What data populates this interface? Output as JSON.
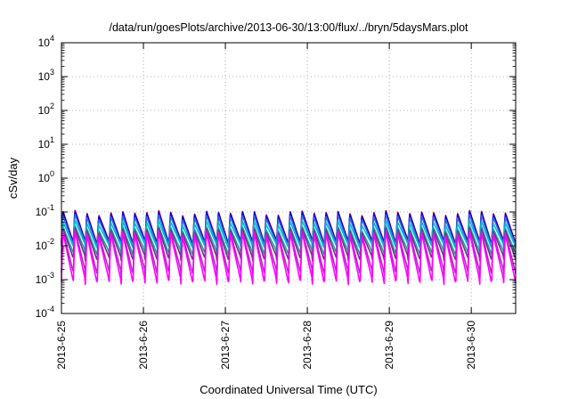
{
  "chart_data": {
    "type": "line",
    "title": "/data/run/goesPlots/archive/2013-06-30/13:00/flux/../bryn/5daysMars.plot",
    "xlabel": "Coordinated Universal Time (UTC)",
    "ylabel": "cSv/day",
    "yscale": "log",
    "ylim": [
      0.0001,
      10000
    ],
    "xlim": [
      "2013-06-25T00:00",
      "2013-06-30T13:00"
    ],
    "grid": true,
    "x_ticks": [
      "2013-6-25",
      "2013-6-26",
      "2013-6-27",
      "2013-6-28",
      "2013-6-29",
      "2013-6-30"
    ],
    "y_ticks": [
      {
        "value": 0.0001,
        "base": "10",
        "exp": "-4"
      },
      {
        "value": 0.001,
        "base": "10",
        "exp": "-3"
      },
      {
        "value": 0.01,
        "base": "10",
        "exp": "-2"
      },
      {
        "value": 0.1,
        "base": "10",
        "exp": "-1"
      },
      {
        "value": 1,
        "base": "10",
        "exp": "0"
      },
      {
        "value": 10,
        "base": "10",
        "exp": "1"
      },
      {
        "value": 100,
        "base": "10",
        "exp": "2"
      },
      {
        "value": 1000,
        "base": "10",
        "exp": "3"
      },
      {
        "value": 10000,
        "base": "10",
        "exp": "4"
      }
    ],
    "orbit_period_hours": 3.5,
    "series": [
      {
        "color": "#e0001b",
        "peak": 0.1,
        "trough": 0.0125
      },
      {
        "color": "#0000e6",
        "peak": 0.095,
        "trough": 0.0115
      },
      {
        "color": "#2e6fd6",
        "peak": 0.075,
        "trough": 0.0105
      },
      {
        "color": "#00bcd8",
        "peak": 0.05,
        "trough": 0.0095
      },
      {
        "color": "#18a79b",
        "peak": 0.035,
        "trough": 0.006
      },
      {
        "color": "#7a2a8a",
        "peak": 0.03,
        "trough": 0.0042
      },
      {
        "color": "#b526c6",
        "peak": 0.027,
        "trough": 0.0016
      },
      {
        "color": "#ff00ff",
        "peak": 0.024,
        "trough": 0.00085
      }
    ]
  }
}
